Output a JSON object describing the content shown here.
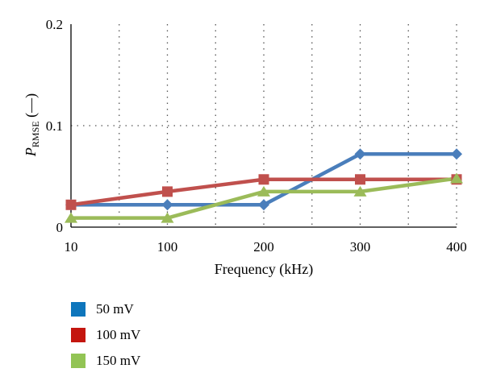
{
  "chart_data": {
    "type": "line",
    "categories": [
      "10",
      "100",
      "200",
      "300",
      "400"
    ],
    "xlabel": "Frequency (kHz)",
    "ylabel": {
      "main": "P",
      "sub": "RMSE",
      "unit": " (—)"
    },
    "ylim": [
      0,
      0.2
    ],
    "yticks": [
      0,
      0.1,
      0.2
    ],
    "ytick_labels": [
      "0",
      "0.1",
      "0.2"
    ],
    "grid": "dotted",
    "legend_position": "bottom-left",
    "series": [
      {
        "name": "50 mV",
        "color": "#4a7ebb",
        "swatch": "#0e76bc",
        "marker": "diamond",
        "values": [
          0.022,
          0.022,
          0.022,
          0.072,
          0.072
        ]
      },
      {
        "name": "100 mV",
        "color": "#c0504d",
        "swatch": "#c4160f",
        "marker": "square",
        "values": [
          0.022,
          0.035,
          0.047,
          0.047,
          0.047
        ]
      },
      {
        "name": "150 mV",
        "color": "#9bbb59",
        "swatch": "#92c454",
        "marker": "triangle",
        "values": [
          0.009,
          0.009,
          0.035,
          0.035,
          0.048
        ]
      }
    ]
  }
}
